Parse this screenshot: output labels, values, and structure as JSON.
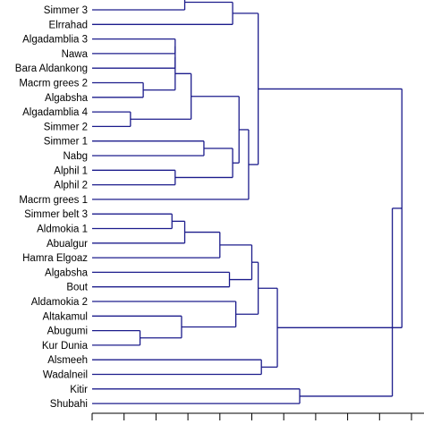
{
  "chart_data": {
    "type": "dendrogram",
    "orientation": "horizontal",
    "title": "",
    "xlabel": "",
    "leaves": [
      "Simmer 3",
      "Elrrahad",
      "Algadamblia 3",
      "Nawa",
      "Bara Aldankong",
      "Macrm grees 2",
      "Algabsha",
      "Algadamblia 4",
      "Simmer 2",
      "Simmer 1",
      "Nabg",
      "Alphil 1",
      "Alphil 2",
      "Macrm grees 1",
      "Simmer belt  3",
      "Aldmokia 1",
      "Abualgur",
      "Hamra Elgoaz",
      "Algabsha",
      "Bout",
      "Aldamokia 2",
      "Altakamul",
      "Abugumi",
      "Kur Dunia",
      "Alsmeeh",
      "Wadalneil",
      "Kitir",
      "Shubahi"
    ],
    "linkage_height_range": [
      0,
      1
    ],
    "merges": [
      {
        "left": "Simmer 3",
        "right": "Simmer 3 (upper, cut off)",
        "height": 0.29
      },
      {
        "left": "Simmer 3 cluster",
        "right": "Elrrahad",
        "height": 0.44
      },
      {
        "left": "Macrm grees 2",
        "right": "Algabsha",
        "height": 0.16
      },
      {
        "left": "Algadamblia 3",
        "right": "Nawa",
        "height": 0.26
      },
      {
        "left": "Algadamblia 3 cluster",
        "right": "Bara Aldankong",
        "height": 0.26
      },
      {
        "left": "Algadamblia 3 cluster",
        "right": "Macrm grees 2 cluster",
        "height": 0.26
      },
      {
        "left": "Algadamblia 4",
        "right": "Simmer 2",
        "height": 0.12
      },
      {
        "left": "Algadamblia 3 cluster",
        "right": "Algadamblia 4 cluster",
        "height": 0.31
      },
      {
        "left": "Simmer 1",
        "right": "Nabg",
        "height": 0.35
      },
      {
        "left": "Alphil 1",
        "right": "Alphil 2",
        "height": 0.26
      },
      {
        "left": "Simmer 1 cluster",
        "right": "Alphil 1 cluster",
        "height": 0.44
      },
      {
        "left": "Algadamblia 3 cluster",
        "right": "Simmer 1 cluster",
        "height": 0.46
      },
      {
        "left": "Algadamblia 3 cluster",
        "right": "Macrm grees 1",
        "height": 0.49
      },
      {
        "left": "Simmer belt  3",
        "right": "Aldmokia 1",
        "height": 0.25
      },
      {
        "left": "Simmer belt  3 cluster",
        "right": "Abualgur",
        "height": 0.29
      },
      {
        "left": "Simmer belt  3 cluster",
        "right": "Hamra Elgoaz",
        "height": 0.4
      },
      {
        "left": "Algabsha",
        "right": "Bout",
        "height": 0.43
      },
      {
        "left": "Simmer belt  3 cluster",
        "right": "Algabsha cluster",
        "height": 0.5
      },
      {
        "left": "Abugumi",
        "right": "Kur Dunia",
        "height": 0.15
      },
      {
        "left": "Altakamul",
        "right": "Abugumi cluster",
        "height": 0.28
      },
      {
        "left": "Aldamokia 2",
        "right": "Altakamul cluster",
        "height": 0.45
      },
      {
        "left": "Simmer belt  3 cluster",
        "right": "Aldamokia 2 cluster",
        "height": 0.52
      },
      {
        "left": "Alsmeeh",
        "right": "Wadalneil",
        "height": 0.53
      },
      {
        "left": "Simmer belt  3 cluster",
        "right": "Alsmeeh cluster",
        "height": 0.58
      },
      {
        "left": "Simmer 3 cluster",
        "right": "Algadamblia 3 cluster",
        "height": 0.52
      },
      {
        "left": "Simmer 3 cluster",
        "right": "Simmer belt  3 cluster",
        "height": 0.97
      },
      {
        "left": "Kitir",
        "right": "Shubahi",
        "height": 0.65
      },
      {
        "left": "Simmer 3 cluster",
        "right": "Kitir cluster",
        "height": 0.94
      }
    ],
    "x_ticks": [
      0,
      0.1,
      0.2,
      0.3,
      0.4,
      0.5,
      0.6,
      0.7,
      0.8,
      0.9,
      1.0
    ],
    "grid": false,
    "legend": "none",
    "line_color": "#1c1c8c"
  }
}
